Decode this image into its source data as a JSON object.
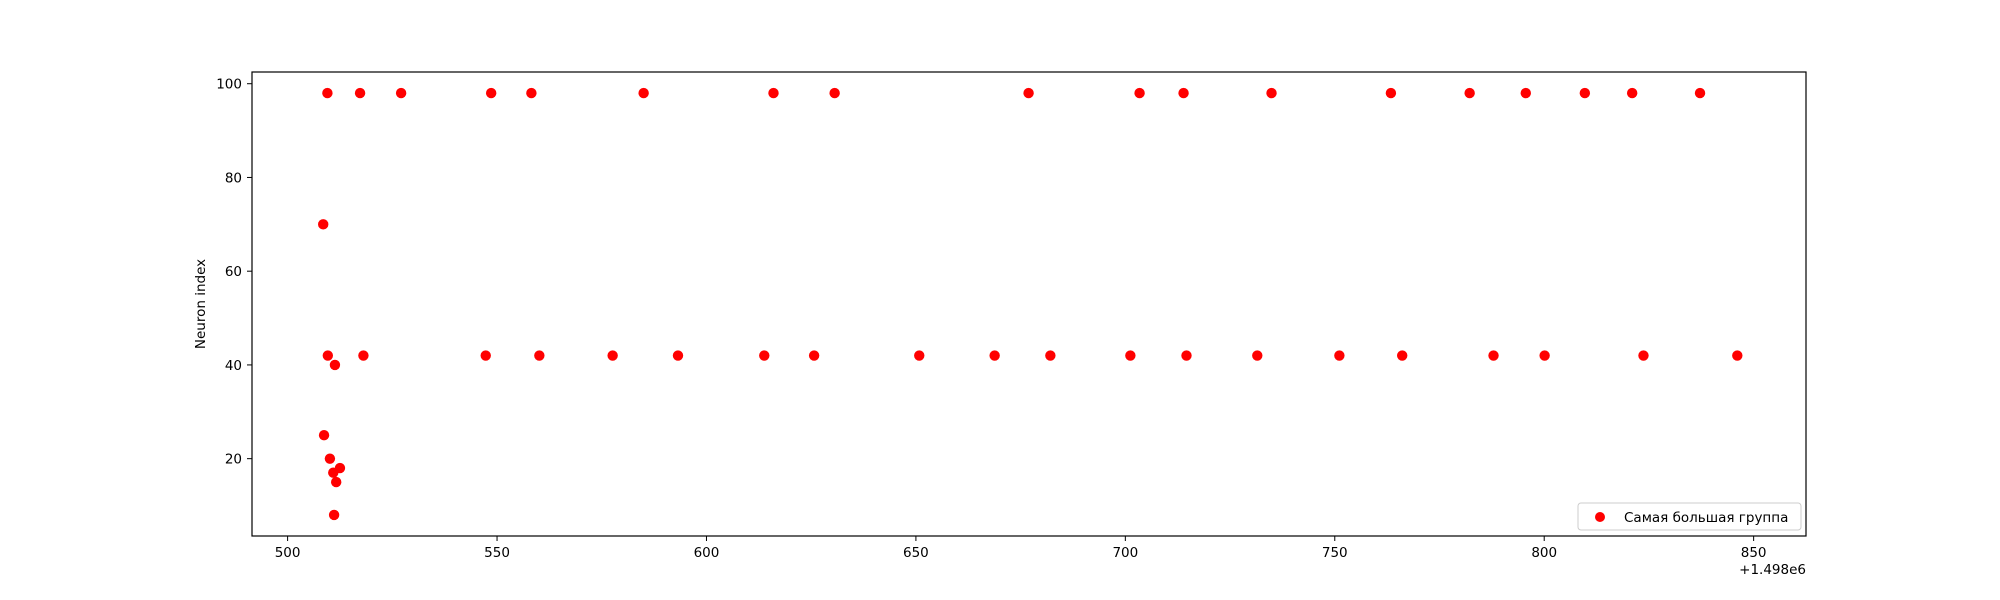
{
  "chart_data": {
    "type": "scatter",
    "title": "",
    "xlabel": "",
    "ylabel": "Neuron index",
    "x_offset_label": "+1.498e6",
    "x_offset": 1498000,
    "xlim": [
      1498491.5,
      1498862.5
    ],
    "ylim": [
      3.5,
      102.5
    ],
    "x_ticks": [
      500,
      550,
      600,
      650,
      700,
      750,
      800,
      850
    ],
    "y_ticks": [
      20,
      40,
      60,
      80,
      100
    ],
    "grid": false,
    "legend_position": "lower right",
    "series": [
      {
        "name": "Самая большая группа",
        "color": "#ff0000",
        "points": [
          [
            1498508.5,
            70
          ],
          [
            1498508.7,
            25
          ],
          [
            1498509.5,
            98
          ],
          [
            1498509.6,
            42
          ],
          [
            1498510.1,
            20
          ],
          [
            1498510.9,
            17
          ],
          [
            1498511.1,
            8
          ],
          [
            1498511.3,
            40
          ],
          [
            1498511.6,
            15
          ],
          [
            1498512.5,
            18
          ],
          [
            1498517.3,
            98
          ],
          [
            1498518.1,
            42
          ],
          [
            1498527.1,
            98
          ],
          [
            1498547.3,
            42
          ],
          [
            1498548.6,
            98
          ],
          [
            1498558.2,
            98
          ],
          [
            1498560.1,
            42
          ],
          [
            1498577.6,
            42
          ],
          [
            1498585.0,
            98
          ],
          [
            1498593.2,
            42
          ],
          [
            1498613.8,
            42
          ],
          [
            1498616.0,
            98
          ],
          [
            1498625.7,
            42
          ],
          [
            1498630.6,
            98
          ],
          [
            1498650.8,
            42
          ],
          [
            1498668.8,
            42
          ],
          [
            1498676.9,
            98
          ],
          [
            1498682.1,
            42
          ],
          [
            1498701.2,
            42
          ],
          [
            1498703.4,
            98
          ],
          [
            1498713.9,
            98
          ],
          [
            1498714.6,
            42
          ],
          [
            1498734.9,
            98
          ],
          [
            1498731.5,
            42
          ],
          [
            1498751.1,
            42
          ],
          [
            1498763.4,
            98
          ],
          [
            1498766.1,
            42
          ],
          [
            1498782.2,
            98
          ],
          [
            1498787.9,
            42
          ],
          [
            1498795.6,
            98
          ],
          [
            1498800.1,
            42
          ],
          [
            1498809.7,
            98
          ],
          [
            1498821.0,
            98
          ],
          [
            1498823.7,
            42
          ],
          [
            1498837.2,
            98
          ],
          [
            1498846.1,
            42
          ]
        ]
      }
    ]
  }
}
